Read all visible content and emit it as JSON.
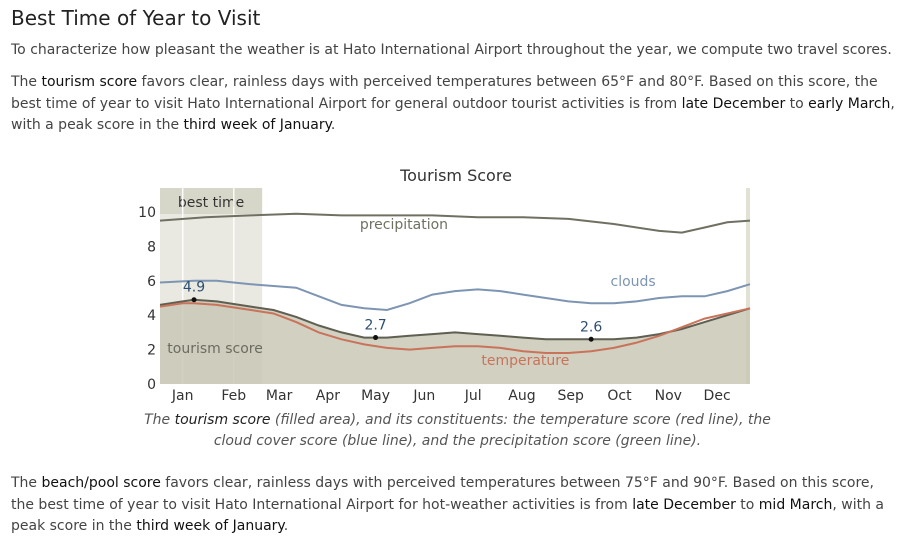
{
  "section_title": "Best Time of Year to Visit",
  "intro": "To characterize how pleasant the weather is at Hato International Airport throughout the year, we compute two travel scores.",
  "tourism_paragraph": {
    "t1": "The ",
    "term": "tourism score",
    "t2": " favors clear, rainless days with perceived temperatures between 65°F and 80°F. Based on this score, the best time of year to visit Hato International Airport for general outdoor tourist activities is from ",
    "start": "late December",
    "t3": " to ",
    "end": "early March",
    "t4": ", with a peak score in the ",
    "peak": "third week of January",
    "t5": "."
  },
  "caption": {
    "c1": "The ",
    "term": "tourism score",
    "c2": " (filled area), and its constituents: the temperature score (red line), the cloud cover score (blue line), and the precipitation score (green line)."
  },
  "beach_paragraph": {
    "t1": "The ",
    "term": "beach/pool score",
    "t2": " favors clear, rainless days with perceived temperatures between 75°F and 90°F. Based on this score, the best time of year to visit Hato International Airport for hot-weather activities is from ",
    "start": "late December",
    "t3": " to ",
    "end": "mid March",
    "t4": ", with a peak score in the ",
    "peak": "third week of January",
    "t5": "."
  },
  "colors": {
    "tourism_fill": "#c9c8b6",
    "tourism_line": "#5f5f52",
    "precipitation": "#707062",
    "clouds": "#7d95b3",
    "temperature": "#c9735a",
    "best_time_band": "#e9e9e2",
    "best_time_header": "#d7d7c9"
  },
  "chart_data": {
    "type": "area",
    "title": "Tourism Score",
    "xlabel": "",
    "ylabel": "",
    "ylim": [
      0,
      10
    ],
    "y_ticks": [
      0,
      2,
      4,
      6,
      8,
      10
    ],
    "x_ticks": [
      "Jan",
      "Feb",
      "Mar",
      "Apr",
      "May",
      "Jun",
      "Jul",
      "Aug",
      "Sep",
      "Oct",
      "Nov",
      "Dec"
    ],
    "x_tick_week": [
      2,
      6.5,
      10.5,
      14.8,
      19,
      23.3,
      27.6,
      31.9,
      36.2,
      40.5,
      44.8,
      49.1
    ],
    "best_time": {
      "label": "best time",
      "from_week": 0,
      "to_week": 9
    },
    "series": [
      {
        "name": "precipitation",
        "label_week": 21.5,
        "x": [
          0,
          4,
          8,
          12,
          16,
          20,
          24,
          28,
          32,
          36,
          40,
          44,
          46,
          48,
          50,
          52
        ],
        "values": [
          9.5,
          9.7,
          9.8,
          9.9,
          9.8,
          9.8,
          9.8,
          9.7,
          9.7,
          9.6,
          9.3,
          8.9,
          8.8,
          9.1,
          9.4,
          9.5
        ]
      },
      {
        "name": "clouds",
        "label_week": 41.7,
        "x": [
          0,
          3,
          5,
          8,
          10,
          12,
          14,
          16,
          18,
          20,
          22,
          24,
          26,
          28,
          30,
          32,
          34,
          36,
          38,
          40,
          42,
          44,
          46,
          48,
          50,
          52
        ],
        "values": [
          5.9,
          6.0,
          6.0,
          5.8,
          5.7,
          5.6,
          5.1,
          4.6,
          4.4,
          4.3,
          4.7,
          5.2,
          5.4,
          5.5,
          5.4,
          5.2,
          5.0,
          4.8,
          4.7,
          4.7,
          4.8,
          5.0,
          5.1,
          5.1,
          5.4,
          5.8
        ]
      },
      {
        "name": "temperature",
        "label_week": 32.2,
        "x": [
          0,
          2,
          3,
          5,
          8,
          10,
          12,
          14,
          16,
          18,
          20,
          22,
          24,
          26,
          28,
          30,
          32,
          34,
          36,
          38,
          40,
          42,
          44,
          46,
          48,
          50,
          52
        ],
        "values": [
          4.5,
          4.7,
          4.7,
          4.6,
          4.3,
          4.1,
          3.6,
          3.0,
          2.6,
          2.3,
          2.1,
          2.0,
          2.1,
          2.2,
          2.2,
          2.1,
          1.9,
          1.8,
          1.8,
          1.9,
          2.1,
          2.4,
          2.8,
          3.3,
          3.8,
          4.1,
          4.4
        ]
      }
    ],
    "area": {
      "name": "tourism score",
      "label_week": 4.5,
      "x": [
        0,
        2,
        3,
        5,
        8,
        10,
        12,
        14,
        16,
        18,
        20,
        22,
        24,
        26,
        28,
        30,
        32,
        34,
        36,
        38,
        40,
        42,
        44,
        46,
        48,
        50,
        52
      ],
      "values": [
        4.6,
        4.8,
        4.9,
        4.8,
        4.5,
        4.3,
        3.9,
        3.4,
        3.0,
        2.7,
        2.7,
        2.8,
        2.9,
        3.0,
        2.9,
        2.8,
        2.7,
        2.6,
        2.6,
        2.6,
        2.6,
        2.7,
        2.9,
        3.2,
        3.6,
        4.0,
        4.4
      ]
    },
    "annotations": [
      {
        "week": 3,
        "value": 4.9,
        "label": "4.9"
      },
      {
        "week": 19,
        "value": 2.7,
        "label": "2.7"
      },
      {
        "week": 38,
        "value": 2.6,
        "label": "2.6"
      }
    ]
  }
}
